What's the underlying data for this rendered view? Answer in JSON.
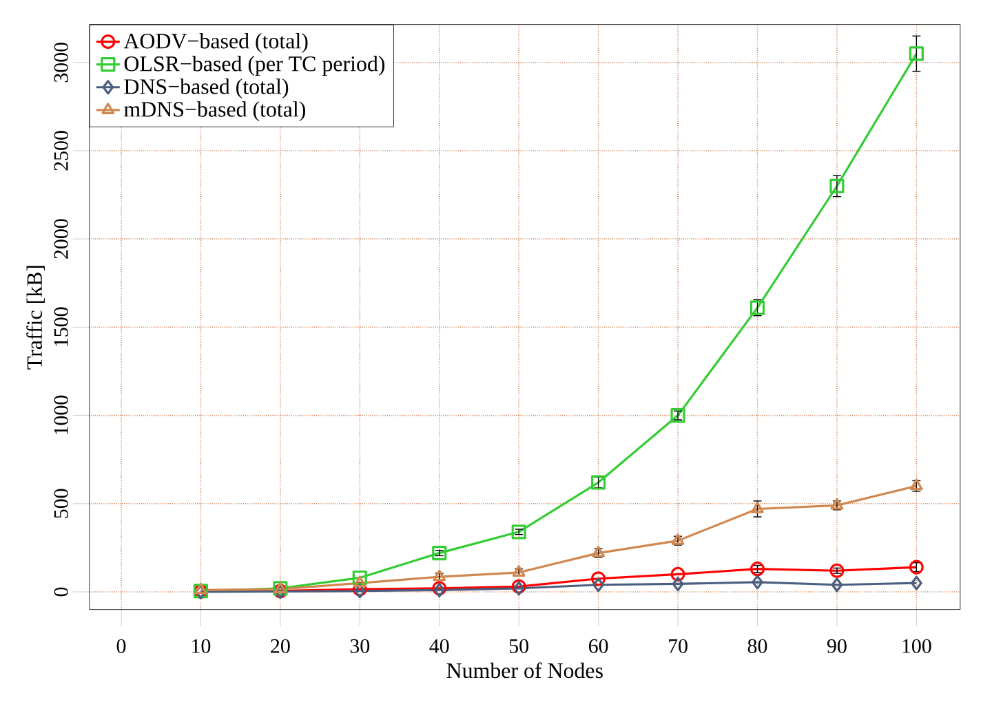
{
  "chart_data": {
    "type": "line",
    "xlabel": "Number of Nodes",
    "ylabel": "Traffic [kB]",
    "x": [
      10,
      20,
      30,
      40,
      50,
      60,
      70,
      80,
      90,
      100
    ],
    "xlim": [
      -4,
      105.5
    ],
    "xticks": [
      0,
      10,
      20,
      30,
      40,
      50,
      60,
      70,
      80,
      90,
      100
    ],
    "ylim": [
      -100,
      3215
    ],
    "yticks": [
      0,
      500,
      1000,
      1500,
      2000,
      2500,
      3000
    ],
    "grid": true,
    "legend": "top left",
    "series": [
      {
        "name": "AODV−based (total)",
        "color": "#ff0000",
        "marker": "circle",
        "values": [
          2,
          5,
          15,
          20,
          30,
          75,
          100,
          130,
          120,
          140
        ],
        "errors": [
          null,
          null,
          null,
          null,
          null,
          null,
          null,
          20,
          15,
          25
        ]
      },
      {
        "name": "OLSR−based (per TC period)",
        "color": "#33cc33",
        "marker": "square",
        "values": [
          5,
          20,
          80,
          220,
          340,
          620,
          1000,
          1610,
          2300,
          3050
        ],
        "errors": [
          null,
          null,
          null,
          15,
          15,
          30,
          25,
          45,
          60,
          100
        ]
      },
      {
        "name": "DNS−based (total)",
        "color": "#4a5f80",
        "marker": "diamond",
        "values": [
          0,
          2,
          5,
          10,
          20,
          40,
          45,
          55,
          40,
          50
        ]
      },
      {
        "name": "mDNS−based (total)",
        "color": "#d08850",
        "marker": "triangle",
        "values": [
          10,
          15,
          50,
          85,
          110,
          220,
          290,
          470,
          490,
          600
        ],
        "errors": [
          null,
          null,
          null,
          20,
          20,
          25,
          25,
          45,
          25,
          30
        ]
      }
    ]
  }
}
